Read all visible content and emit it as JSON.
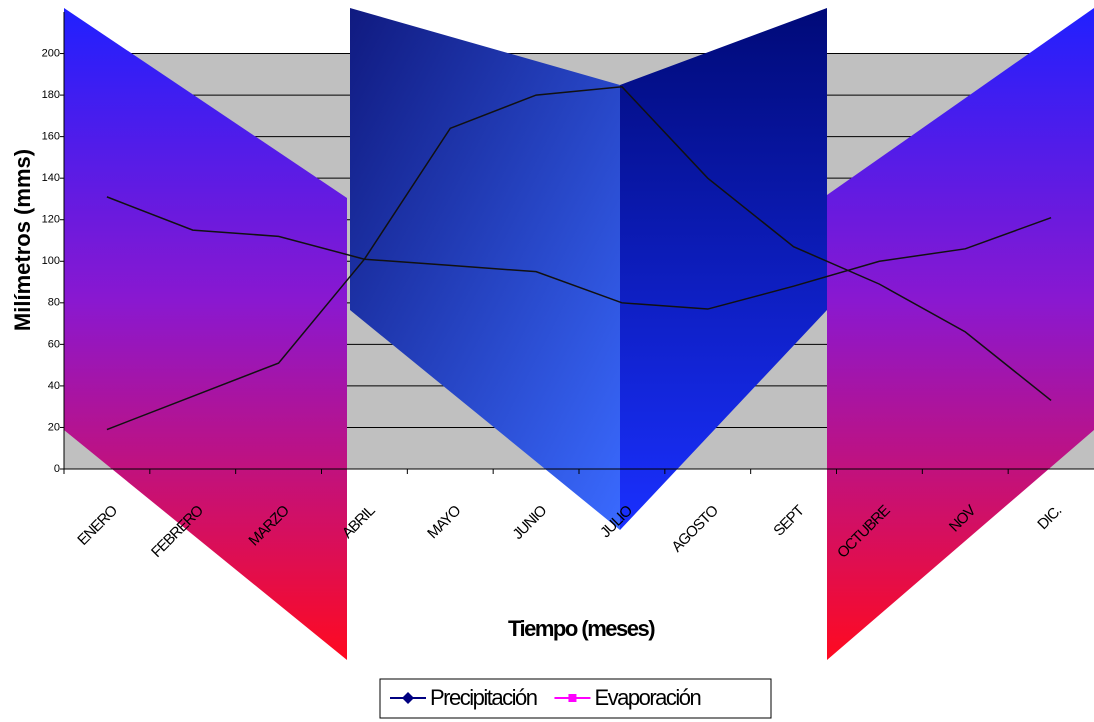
{
  "chart_data": {
    "type": "line",
    "y_axis_label": "Milímetros (mms)",
    "x_axis_label": "Tiempo (meses)",
    "categories": [
      "ENERO",
      "FEBRERO",
      "MARZO",
      "ABRIL",
      "MAYO",
      "JUNIO",
      "JULIO",
      "AGOSTO",
      "SEPT",
      "OCTUBRE",
      "NOV",
      "DIC."
    ],
    "series": [
      {
        "name": "Precipitación",
        "color": "#000080",
        "values": [
          19,
          35,
          51,
          101,
          164,
          180,
          184,
          140,
          107,
          89,
          66,
          33
        ]
      },
      {
        "name": "Evaporación",
        "color": "#ff00ff",
        "values": [
          131,
          115,
          112,
          101,
          98,
          95,
          80,
          77,
          88,
          100,
          106,
          121
        ]
      }
    ],
    "ylim": [
      0,
      220
    ],
    "yticks": [
      0,
      20,
      40,
      60,
      80,
      100,
      120,
      140,
      160,
      180,
      200
    ],
    "grid": true
  }
}
